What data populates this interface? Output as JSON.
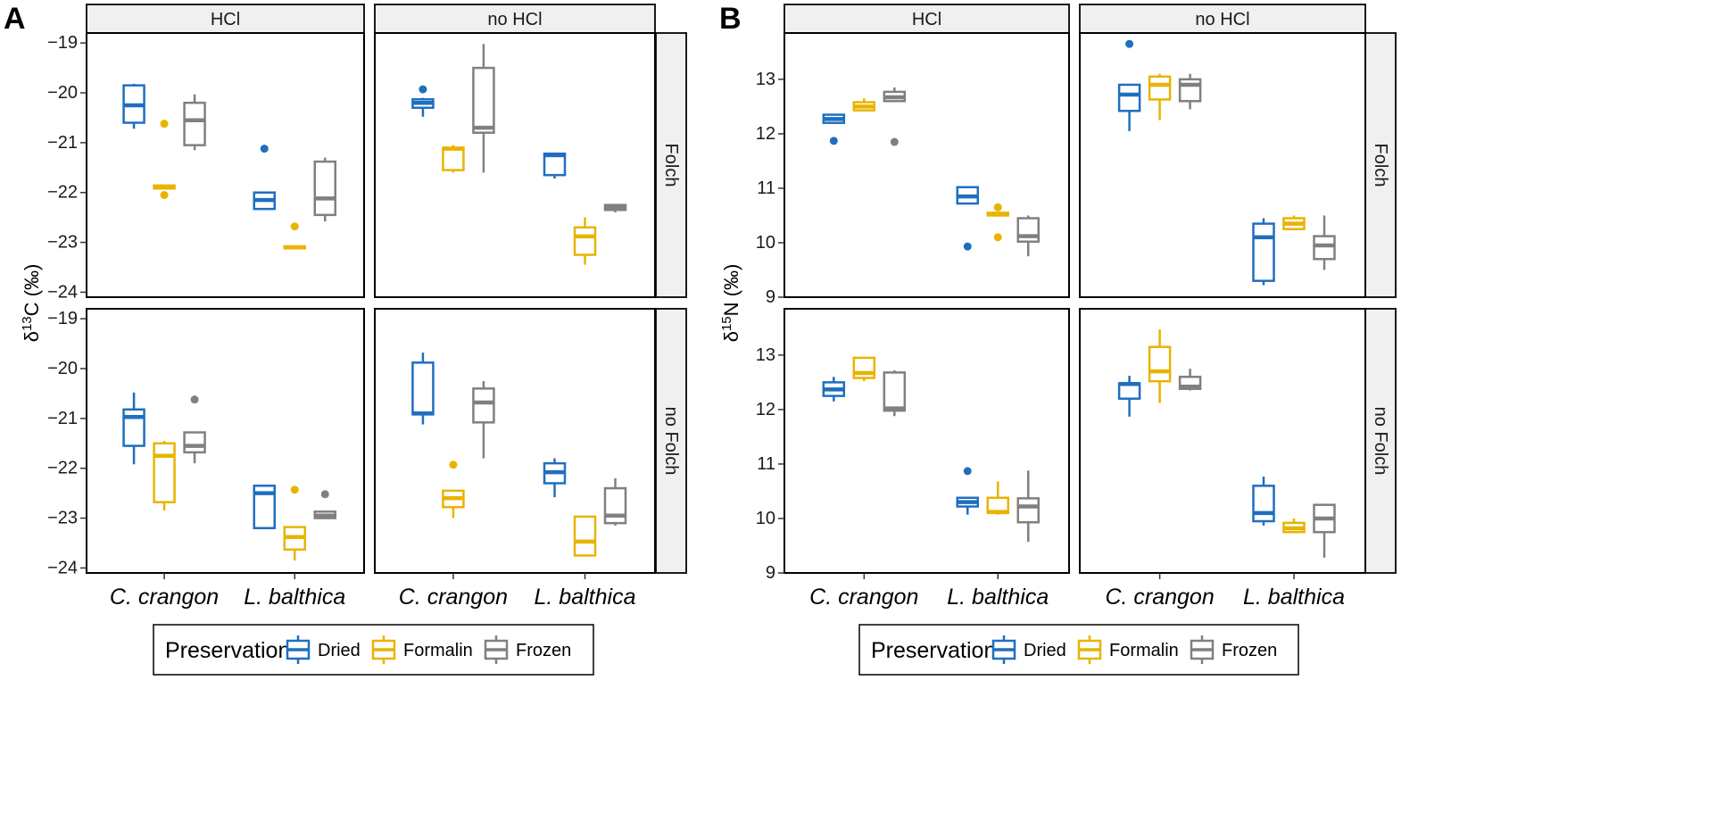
{
  "figure": {
    "panel_a_label": "A",
    "panel_b_label": "B",
    "colors": {
      "Dried": "#1f6fbf",
      "Formalin": "#e8b400",
      "Frozen": "#808080"
    }
  },
  "legend": {
    "title": "Preservation",
    "items": [
      "Dried",
      "Formalin",
      "Frozen"
    ]
  },
  "chart_data": [
    {
      "id": "A",
      "type": "boxplot",
      "ylabel": "δ13C (‰)",
      "ylabel_base": "δ",
      "ylabel_sup": "13",
      "ylabel_rest": "C (‰)",
      "ylim": [
        -24.1,
        -18.8
      ],
      "yticks": [
        -19,
        -20,
        -21,
        -22,
        -23,
        -24
      ],
      "column_strips": [
        "HCl",
        "no HCl"
      ],
      "row_strips": [
        "Folch",
        "no Folch"
      ],
      "categories": [
        "C. crangon",
        "L. balthica"
      ],
      "series": [
        "Dried",
        "Formalin",
        "Frozen"
      ],
      "boxes": [
        {
          "row": 0,
          "col": 0,
          "cat": 0,
          "series": 0,
          "lo": -20.72,
          "q1": -20.6,
          "med": -20.25,
          "q3": -19.85,
          "hi": -19.82,
          "out": []
        },
        {
          "row": 0,
          "col": 0,
          "cat": 0,
          "series": 1,
          "lo": -21.92,
          "q1": -21.92,
          "med": -21.88,
          "q3": -21.86,
          "hi": -21.86,
          "out": [
            -20.62,
            -22.05
          ]
        },
        {
          "row": 0,
          "col": 0,
          "cat": 0,
          "series": 2,
          "lo": -21.15,
          "q1": -21.05,
          "med": -20.55,
          "q3": -20.2,
          "hi": -20.03,
          "out": []
        },
        {
          "row": 0,
          "col": 0,
          "cat": 1,
          "series": 0,
          "lo": -22.33,
          "q1": -22.33,
          "med": -22.15,
          "q3": -22.0,
          "hi": -22.0,
          "out": [
            -21.12
          ]
        },
        {
          "row": 0,
          "col": 0,
          "cat": 1,
          "series": 1,
          "lo": -23.12,
          "q1": -23.12,
          "med": -23.1,
          "q3": -23.08,
          "hi": -23.08,
          "out": [
            -22.68
          ]
        },
        {
          "row": 0,
          "col": 0,
          "cat": 1,
          "series": 2,
          "lo": -22.58,
          "q1": -22.45,
          "med": -22.12,
          "q3": -21.38,
          "hi": -21.3,
          "out": []
        },
        {
          "row": 0,
          "col": 1,
          "cat": 0,
          "series": 0,
          "lo": -20.48,
          "q1": -20.3,
          "med": -20.2,
          "q3": -20.13,
          "hi": -20.1,
          "out": [
            -19.93
          ]
        },
        {
          "row": 0,
          "col": 1,
          "cat": 0,
          "series": 1,
          "lo": -21.6,
          "q1": -21.55,
          "med": -21.12,
          "q3": -21.1,
          "hi": -21.05,
          "out": []
        },
        {
          "row": 0,
          "col": 1,
          "cat": 0,
          "series": 2,
          "lo": -21.6,
          "q1": -20.8,
          "med": -20.7,
          "q3": -19.5,
          "hi": -19.02,
          "out": []
        },
        {
          "row": 0,
          "col": 1,
          "cat": 1,
          "series": 0,
          "lo": -21.72,
          "q1": -21.65,
          "med": -21.25,
          "q3": -21.22,
          "hi": -21.22,
          "out": []
        },
        {
          "row": 0,
          "col": 1,
          "cat": 1,
          "series": 1,
          "lo": -23.45,
          "q1": -23.25,
          "med": -22.88,
          "q3": -22.7,
          "hi": -22.5,
          "out": []
        },
        {
          "row": 0,
          "col": 1,
          "cat": 1,
          "series": 2,
          "lo": -22.4,
          "q1": -22.35,
          "med": -22.3,
          "q3": -22.25,
          "hi": -22.23,
          "out": []
        },
        {
          "row": 1,
          "col": 0,
          "cat": 0,
          "series": 0,
          "lo": -21.92,
          "q1": -21.55,
          "med": -20.97,
          "q3": -20.82,
          "hi": -20.48,
          "out": []
        },
        {
          "row": 1,
          "col": 0,
          "cat": 0,
          "series": 1,
          "lo": -22.85,
          "q1": -22.68,
          "med": -21.75,
          "q3": -21.5,
          "hi": -21.45,
          "out": []
        },
        {
          "row": 1,
          "col": 0,
          "cat": 0,
          "series": 2,
          "lo": -21.9,
          "q1": -21.68,
          "med": -21.55,
          "q3": -21.28,
          "hi": -21.28,
          "out": [
            -20.62
          ]
        },
        {
          "row": 1,
          "col": 0,
          "cat": 1,
          "series": 0,
          "lo": -23.22,
          "q1": -23.2,
          "med": -22.5,
          "q3": -22.35,
          "hi": -22.35,
          "out": []
        },
        {
          "row": 1,
          "col": 0,
          "cat": 1,
          "series": 1,
          "lo": -23.85,
          "q1": -23.63,
          "med": -23.38,
          "q3": -23.18,
          "hi": -23.18,
          "out": [
            -22.43
          ]
        },
        {
          "row": 1,
          "col": 0,
          "cat": 1,
          "series": 2,
          "lo": -23.02,
          "q1": -23.0,
          "med": -22.95,
          "q3": -22.87,
          "hi": -22.87,
          "out": [
            -22.52
          ]
        },
        {
          "row": 1,
          "col": 1,
          "cat": 0,
          "series": 0,
          "lo": -21.12,
          "q1": -20.92,
          "med": -20.9,
          "q3": -19.88,
          "hi": -19.68,
          "out": []
        },
        {
          "row": 1,
          "col": 1,
          "cat": 0,
          "series": 1,
          "lo": -23.0,
          "q1": -22.78,
          "med": -22.6,
          "q3": -22.45,
          "hi": -22.45,
          "out": [
            -21.93
          ]
        },
        {
          "row": 1,
          "col": 1,
          "cat": 0,
          "series": 2,
          "lo": -21.8,
          "q1": -21.08,
          "med": -20.68,
          "q3": -20.4,
          "hi": -20.25,
          "out": []
        },
        {
          "row": 1,
          "col": 1,
          "cat": 1,
          "series": 0,
          "lo": -22.58,
          "q1": -22.3,
          "med": -22.08,
          "q3": -21.9,
          "hi": -21.8,
          "out": []
        },
        {
          "row": 1,
          "col": 1,
          "cat": 1,
          "series": 1,
          "lo": -23.75,
          "q1": -23.75,
          "med": -23.47,
          "q3": -22.97,
          "hi": -22.97,
          "out": []
        },
        {
          "row": 1,
          "col": 1,
          "cat": 1,
          "series": 2,
          "lo": -23.15,
          "q1": -23.1,
          "med": -22.95,
          "q3": -22.4,
          "hi": -22.2,
          "out": []
        }
      ]
    },
    {
      "id": "B",
      "type": "boxplot",
      "ylabel": "δ15N (‰)",
      "ylabel_base": "δ",
      "ylabel_sup": "15",
      "ylabel_rest": "N (‰)",
      "ylim": [
        9.0,
        13.85
      ],
      "yticks": [
        9,
        10,
        11,
        12,
        13
      ],
      "column_strips": [
        "HCl",
        "no HCl"
      ],
      "row_strips": [
        "Folch",
        "no Folch"
      ],
      "categories": [
        "C. crangon",
        "L. balthica"
      ],
      "series": [
        "Dried",
        "Formalin",
        "Frozen"
      ],
      "boxes": [
        {
          "row": 0,
          "col": 0,
          "cat": 0,
          "series": 0,
          "lo": 12.2,
          "q1": 12.2,
          "med": 12.27,
          "q3": 12.35,
          "hi": 12.35,
          "out": [
            11.87
          ]
        },
        {
          "row": 0,
          "col": 0,
          "cat": 0,
          "series": 1,
          "lo": 12.43,
          "q1": 12.43,
          "med": 12.5,
          "q3": 12.58,
          "hi": 12.65,
          "out": []
        },
        {
          "row": 0,
          "col": 0,
          "cat": 0,
          "series": 2,
          "lo": 12.6,
          "q1": 12.6,
          "med": 12.67,
          "q3": 12.77,
          "hi": 12.85,
          "out": [
            11.85
          ]
        },
        {
          "row": 0,
          "col": 0,
          "cat": 1,
          "series": 0,
          "lo": 10.72,
          "q1": 10.72,
          "med": 10.85,
          "q3": 11.02,
          "hi": 11.02,
          "out": [
            9.93
          ]
        },
        {
          "row": 0,
          "col": 0,
          "cat": 1,
          "series": 1,
          "lo": 10.5,
          "q1": 10.5,
          "med": 10.53,
          "q3": 10.55,
          "hi": 10.55,
          "out": [
            10.65,
            10.1
          ]
        },
        {
          "row": 0,
          "col": 0,
          "cat": 1,
          "series": 2,
          "lo": 9.75,
          "q1": 10.02,
          "med": 10.12,
          "q3": 10.45,
          "hi": 10.5,
          "out": []
        },
        {
          "row": 0,
          "col": 1,
          "cat": 0,
          "series": 0,
          "lo": 12.05,
          "q1": 12.42,
          "med": 12.72,
          "q3": 12.9,
          "hi": 12.9,
          "out": [
            13.65
          ]
        },
        {
          "row": 0,
          "col": 1,
          "cat": 0,
          "series": 1,
          "lo": 12.25,
          "q1": 12.63,
          "med": 12.9,
          "q3": 13.05,
          "hi": 13.1,
          "out": []
        },
        {
          "row": 0,
          "col": 1,
          "cat": 0,
          "series": 2,
          "lo": 12.45,
          "q1": 12.6,
          "med": 12.9,
          "q3": 13.0,
          "hi": 13.1,
          "out": []
        },
        {
          "row": 0,
          "col": 1,
          "cat": 1,
          "series": 0,
          "lo": 9.22,
          "q1": 9.3,
          "med": 10.1,
          "q3": 10.35,
          "hi": 10.45,
          "out": []
        },
        {
          "row": 0,
          "col": 1,
          "cat": 1,
          "series": 1,
          "lo": 10.25,
          "q1": 10.25,
          "med": 10.35,
          "q3": 10.45,
          "hi": 10.5,
          "out": []
        },
        {
          "row": 0,
          "col": 1,
          "cat": 1,
          "series": 2,
          "lo": 9.5,
          "q1": 9.7,
          "med": 9.95,
          "q3": 10.12,
          "hi": 10.5,
          "out": []
        },
        {
          "row": 1,
          "col": 0,
          "cat": 0,
          "series": 0,
          "lo": 12.15,
          "q1": 12.25,
          "med": 12.37,
          "q3": 12.5,
          "hi": 12.6,
          "out": []
        },
        {
          "row": 1,
          "col": 0,
          "cat": 0,
          "series": 1,
          "lo": 12.52,
          "q1": 12.58,
          "med": 12.67,
          "q3": 12.95,
          "hi": 12.95,
          "out": []
        },
        {
          "row": 1,
          "col": 0,
          "cat": 0,
          "series": 2,
          "lo": 11.88,
          "q1": 11.98,
          "med": 12.02,
          "q3": 12.68,
          "hi": 12.72,
          "out": []
        },
        {
          "row": 1,
          "col": 0,
          "cat": 1,
          "series": 0,
          "lo": 10.07,
          "q1": 10.22,
          "med": 10.3,
          "q3": 10.38,
          "hi": 10.38,
          "out": [
            10.87
          ]
        },
        {
          "row": 1,
          "col": 0,
          "cat": 1,
          "series": 1,
          "lo": 10.07,
          "q1": 10.1,
          "med": 10.12,
          "q3": 10.38,
          "hi": 10.68,
          "out": []
        },
        {
          "row": 1,
          "col": 0,
          "cat": 1,
          "series": 2,
          "lo": 9.57,
          "q1": 9.93,
          "med": 10.22,
          "q3": 10.37,
          "hi": 10.88,
          "out": []
        },
        {
          "row": 1,
          "col": 1,
          "cat": 0,
          "series": 0,
          "lo": 11.87,
          "q1": 12.2,
          "med": 12.47,
          "q3": 12.48,
          "hi": 12.62,
          "out": []
        },
        {
          "row": 1,
          "col": 1,
          "cat": 0,
          "series": 1,
          "lo": 12.12,
          "q1": 12.52,
          "med": 12.7,
          "q3": 13.15,
          "hi": 13.47,
          "out": []
        },
        {
          "row": 1,
          "col": 1,
          "cat": 0,
          "series": 2,
          "lo": 12.35,
          "q1": 12.38,
          "med": 12.42,
          "q3": 12.6,
          "hi": 12.75,
          "out": []
        },
        {
          "row": 1,
          "col": 1,
          "cat": 1,
          "series": 0,
          "lo": 9.87,
          "q1": 9.95,
          "med": 10.1,
          "q3": 10.6,
          "hi": 10.77,
          "out": []
        },
        {
          "row": 1,
          "col": 1,
          "cat": 1,
          "series": 1,
          "lo": 9.75,
          "q1": 9.75,
          "med": 9.82,
          "q3": 9.92,
          "hi": 10.0,
          "out": []
        },
        {
          "row": 1,
          "col": 1,
          "cat": 1,
          "series": 2,
          "lo": 9.28,
          "q1": 9.75,
          "med": 10.0,
          "q3": 10.25,
          "hi": 10.25,
          "out": []
        }
      ]
    }
  ]
}
